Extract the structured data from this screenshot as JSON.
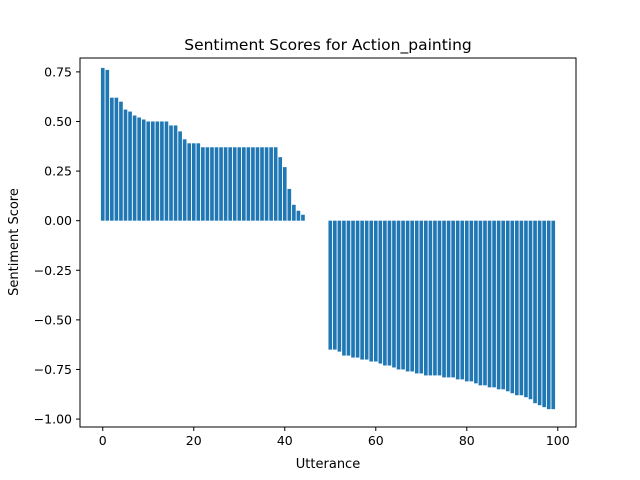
{
  "chart_data": {
    "type": "bar",
    "title": "Sentiment Scores for Action_painting",
    "xlabel": "Utterance",
    "ylabel": "Sentiment Score",
    "bar_color": "#1f77b4",
    "xlim": [
      -5,
      104
    ],
    "ylim": [
      -1.04,
      0.82
    ],
    "grid": false,
    "xticks": [
      0,
      20,
      40,
      60,
      80,
      100
    ],
    "xtick_labels": [
      "0",
      "20",
      "40",
      "60",
      "80",
      "100"
    ],
    "yticks": [
      0.75,
      0.5,
      0.25,
      0.0,
      -0.25,
      -0.5,
      -0.75,
      -1.0
    ],
    "ytick_labels": [
      "0.75",
      "0.50",
      "0.25",
      "0.00",
      "−0.25",
      "−0.50",
      "−0.75",
      "−1.00"
    ],
    "x": [
      0,
      1,
      2,
      3,
      4,
      5,
      6,
      7,
      8,
      9,
      10,
      11,
      12,
      13,
      14,
      15,
      16,
      17,
      18,
      19,
      20,
      21,
      22,
      23,
      24,
      25,
      26,
      27,
      28,
      29,
      30,
      31,
      32,
      33,
      34,
      35,
      36,
      37,
      38,
      39,
      40,
      41,
      42,
      43,
      44,
      45,
      46,
      47,
      48,
      49,
      50,
      51,
      52,
      53,
      54,
      55,
      56,
      57,
      58,
      59,
      60,
      61,
      62,
      63,
      64,
      65,
      66,
      67,
      68,
      69,
      70,
      71,
      72,
      73,
      74,
      75,
      76,
      77,
      78,
      79,
      80,
      81,
      82,
      83,
      84,
      85,
      86,
      87,
      88,
      89,
      90,
      91,
      92,
      93,
      94,
      95,
      96,
      97,
      98,
      99
    ],
    "values": [
      0.77,
      0.76,
      0.62,
      0.62,
      0.6,
      0.56,
      0.55,
      0.53,
      0.52,
      0.51,
      0.5,
      0.5,
      0.5,
      0.5,
      0.5,
      0.48,
      0.48,
      0.45,
      0.41,
      0.39,
      0.39,
      0.39,
      0.37,
      0.37,
      0.37,
      0.37,
      0.37,
      0.37,
      0.37,
      0.37,
      0.37,
      0.37,
      0.37,
      0.37,
      0.37,
      0.37,
      0.37,
      0.37,
      0.37,
      0.32,
      0.27,
      0.16,
      0.08,
      0.05,
      0.03,
      0,
      0,
      0,
      0,
      0,
      -0.65,
      -0.65,
      -0.66,
      -0.68,
      -0.68,
      -0.69,
      -0.69,
      -0.7,
      -0.7,
      -0.71,
      -0.71,
      -0.72,
      -0.73,
      -0.73,
      -0.74,
      -0.75,
      -0.75,
      -0.76,
      -0.76,
      -0.77,
      -0.77,
      -0.78,
      -0.78,
      -0.78,
      -0.78,
      -0.79,
      -0.79,
      -0.79,
      -0.8,
      -0.8,
      -0.81,
      -0.81,
      -0.82,
      -0.83,
      -0.83,
      -0.84,
      -0.84,
      -0.85,
      -0.85,
      -0.86,
      -0.87,
      -0.88,
      -0.88,
      -0.89,
      -0.9,
      -0.92,
      -0.93,
      -0.94,
      -0.95,
      -0.95
    ]
  }
}
